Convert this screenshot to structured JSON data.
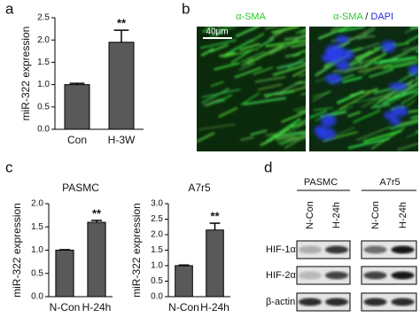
{
  "panel_labels": [
    "a",
    "b",
    "c",
    "d"
  ],
  "chart_data": [
    {
      "type": "bar",
      "y_label": "miR-322 expression",
      "categories": [
        "Con",
        "H-3W"
      ],
      "values": [
        1.0,
        1.95
      ],
      "errors": [
        0.03,
        0.27
      ],
      "significance": [
        null,
        "**"
      ],
      "color": "#595959",
      "ylim": [
        0,
        2.5
      ],
      "yticks": [
        {
          "value": 0,
          "label": "0.0"
        },
        0.5,
        {
          "value": 1,
          "label": "1.0"
        },
        1.5,
        {
          "value": 2,
          "label": "2.0"
        },
        2.5
      ]
    },
    {
      "type": "bar",
      "title": "PASMC",
      "y_label": "miR-322 expression",
      "categories": [
        "N-Con",
        "H-24h"
      ],
      "values": [
        1.0,
        1.6
      ],
      "errors": [
        0.01,
        0.04
      ],
      "significance": [
        null,
        "**"
      ],
      "color": "#595959",
      "ylim": [
        0,
        2.0
      ],
      "yticks": [
        {
          "value": 0,
          "label": "0.0"
        },
        0.5,
        {
          "value": 1,
          "label": "1.0"
        },
        1.5,
        {
          "value": 2,
          "label": "2.0"
        }
      ]
    },
    {
      "type": "bar",
      "title": "A7r5",
      "y_label": "miR-322 expression",
      "categories": [
        "N-Con",
        "H-24h"
      ],
      "values": [
        1.0,
        2.15
      ],
      "errors": [
        0.02,
        0.22
      ],
      "significance": [
        null,
        "**"
      ],
      "color": "#595959",
      "ylim": [
        0,
        3.0
      ],
      "yticks": [
        {
          "value": 0,
          "label": "0.0"
        },
        0.5,
        {
          "value": 1,
          "label": "1.0"
        },
        1.5,
        {
          "value": 2,
          "label": "2.0"
        },
        2.5,
        {
          "value": 3,
          "label": "3.0"
        }
      ]
    }
  ],
  "micrograph": {
    "left_label": "α-SMA",
    "right_label": [
      "α-SMA",
      " / ",
      "DAPI"
    ],
    "scale_bar": "40μm"
  },
  "blot": {
    "groups": [
      {
        "name": "PASMC",
        "lanes": [
          "N-Con",
          "H-24h"
        ]
      },
      {
        "name": "A7r5",
        "lanes": [
          "N-Con",
          "H-24h"
        ]
      }
    ],
    "rows": [
      "HIF-1α",
      "HIF-2α",
      "β-actin"
    ]
  }
}
